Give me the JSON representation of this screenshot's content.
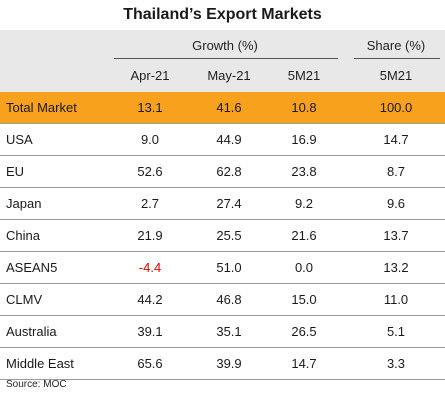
{
  "title": "Thailand’s Export Markets",
  "header": {
    "growth_label": "Growth (%)",
    "share_label": "Share (%)",
    "columns": [
      "Apr-21",
      "May-21",
      "5M21",
      "5M21"
    ]
  },
  "rows": [
    {
      "market": "Total Market",
      "apr": "13.1",
      "may": "41.6",
      "m5": "10.8",
      "share": "100.0"
    },
    {
      "market": "USA",
      "apr": "9.0",
      "may": "44.9",
      "m5": "16.9",
      "share": "14.7"
    },
    {
      "market": "EU",
      "apr": "52.6",
      "may": "62.8",
      "m5": "23.8",
      "share": "8.7"
    },
    {
      "market": "Japan",
      "apr": "2.7",
      "may": "27.4",
      "m5": "9.2",
      "share": "9.6"
    },
    {
      "market": "China",
      "apr": "21.9",
      "may": "25.5",
      "m5": "21.6",
      "share": "13.7"
    },
    {
      "market": "ASEAN5",
      "apr": "-4.4",
      "may": "51.0",
      "m5": "0.0",
      "share": "13.2"
    },
    {
      "market": "CLMV",
      "apr": "44.2",
      "may": "46.8",
      "m5": "15.0",
      "share": "11.0"
    },
    {
      "market": "Australia",
      "apr": "39.1",
      "may": "35.1",
      "m5": "26.5",
      "share": "5.1"
    },
    {
      "market": "Middle East",
      "apr": "65.6",
      "may": "39.9",
      "m5": "14.7",
      "share": "3.3"
    }
  ],
  "source": "Source: MOC",
  "colors": {
    "highlight_row": "#f7a11c",
    "header_bg": "#e8e8e8",
    "negative": "#e00000"
  }
}
